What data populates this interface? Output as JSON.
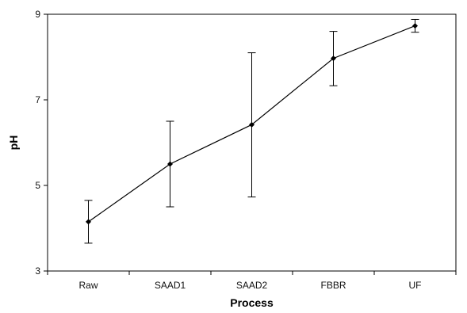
{
  "chart_data": {
    "type": "line",
    "xlabel": "Process",
    "ylabel": "pH",
    "categories": [
      "Raw",
      "SAAD1",
      "SAAD2",
      "FBBR",
      "UF"
    ],
    "ylim": [
      3,
      9
    ],
    "yticks": [
      3,
      5,
      7,
      9
    ],
    "grid": false,
    "series": [
      {
        "values": [
          4.15,
          5.5,
          6.42,
          7.97,
          8.73
        ],
        "error_low": [
          3.65,
          4.5,
          4.73,
          7.33,
          8.58
        ],
        "error_high": [
          4.65,
          6.5,
          8.1,
          8.6,
          8.88
        ]
      }
    ],
    "colors": {
      "line": "#000000",
      "frame": "#000000"
    }
  }
}
